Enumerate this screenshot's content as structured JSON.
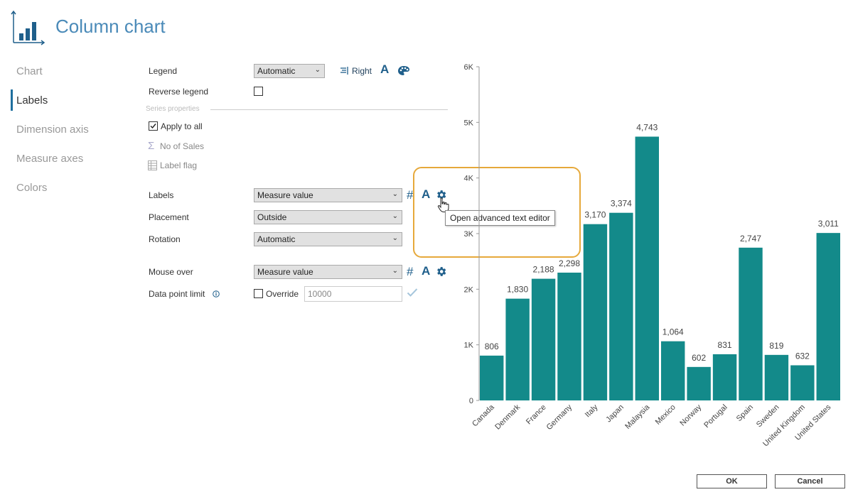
{
  "header": {
    "title": "Column chart",
    "icon": "column-chart-icon"
  },
  "nav": {
    "items": [
      {
        "label": "Chart"
      },
      {
        "label": "Labels"
      },
      {
        "label": "Dimension axis"
      },
      {
        "label": "Measure axes"
      },
      {
        "label": "Colors"
      }
    ],
    "active": "Labels"
  },
  "form": {
    "legend_label": "Legend",
    "legend_value": "Automatic",
    "legend_position": "Right",
    "reverse_legend_label": "Reverse legend",
    "series_properties_label": "Series properties",
    "apply_to_all_label": "Apply to all",
    "measure_name": "No of Sales",
    "label_flag": "Label flag",
    "labels_label": "Labels",
    "labels_value": "Measure value",
    "placement_label": "Placement",
    "placement_value": "Outside",
    "rotation_label": "Rotation",
    "rotation_value": "Automatic",
    "mouse_over_label": "Mouse over",
    "mouse_over_value": "Measure value",
    "data_point_limit_label": "Data point limit",
    "override_label": "Override",
    "override_value": "10000",
    "format_glyph": "#",
    "font_glyph": "A"
  },
  "tooltip": {
    "text": "Open advanced text editor"
  },
  "footer": {
    "ok_label": "OK",
    "cancel_label": "Cancel"
  },
  "colors": {
    "accent": "#1f5f8b",
    "bar": "#138a8a",
    "highlight": "#e6a93b"
  },
  "chart_data": {
    "type": "bar",
    "categories": [
      "Canada",
      "Denmark",
      "France",
      "Germany",
      "Italy",
      "Japan",
      "Malaysia",
      "Mexico",
      "Norway",
      "Portugal",
      "Spain",
      "Sweden",
      "United Kingdom",
      "United States"
    ],
    "values": [
      806,
      1830,
      2188,
      2298,
      3170,
      3374,
      4743,
      1064,
      602,
      831,
      2747,
      819,
      632,
      3011
    ],
    "value_labels": [
      "806",
      "1,830",
      "2,188",
      "2,298",
      "3,170",
      "3,374",
      "4,743",
      "1,064",
      "602",
      "831",
      "2,747",
      "819",
      "632",
      "3,011"
    ],
    "yticks": [
      0,
      1000,
      2000,
      3000,
      4000,
      5000,
      6000
    ],
    "ytick_labels": [
      "0",
      "1K",
      "2K",
      "3K",
      "4K",
      "5K",
      "6K"
    ],
    "ylim": [
      0,
      6000
    ],
    "title": "",
    "xlabel": "",
    "ylabel": "",
    "grid": false
  }
}
